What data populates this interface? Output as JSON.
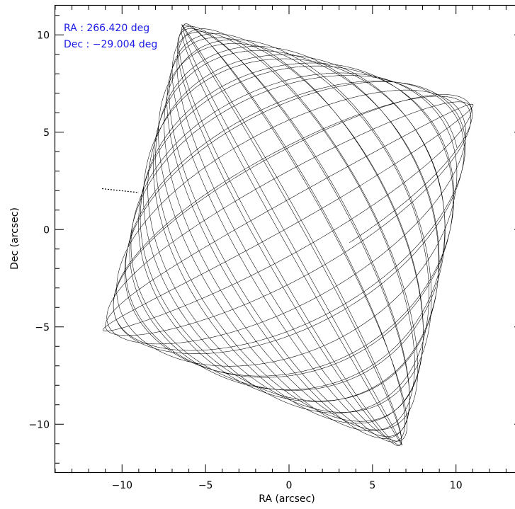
{
  "chart_data": {
    "type": "line",
    "title": "",
    "xlabel": "RA (arcsec)",
    "ylabel": "Dec (arcsec)",
    "xlim": [
      -14,
      14
    ],
    "ylim": [
      -12.5,
      11.5
    ],
    "x_ticks": [
      -10,
      -5,
      0,
      5,
      10
    ],
    "x_tick_labels": [
      "−10",
      "−5",
      "0",
      "5",
      "10"
    ],
    "y_ticks": [
      -10,
      -5,
      0,
      5,
      10
    ],
    "y_tick_labels": [
      "−10",
      "−5",
      "0",
      "5",
      "10"
    ],
    "annotations": [
      "RA : 266.420 deg",
      "Dec : −29.004 deg"
    ],
    "grid": false,
    "pattern": "Lissajous dither scan filling a rotated square",
    "corners": [
      [
        -6.4,
        10.7
      ],
      [
        11.3,
        6.6
      ],
      [
        6.9,
        -11.3
      ],
      [
        -11.2,
        -5.2
      ]
    ],
    "stray_segment": [
      [
        -11.2,
        2.1
      ],
      [
        -9.0,
        1.9
      ]
    ],
    "series_color": "#000000",
    "annotation_color": "#1a1ae6"
  }
}
